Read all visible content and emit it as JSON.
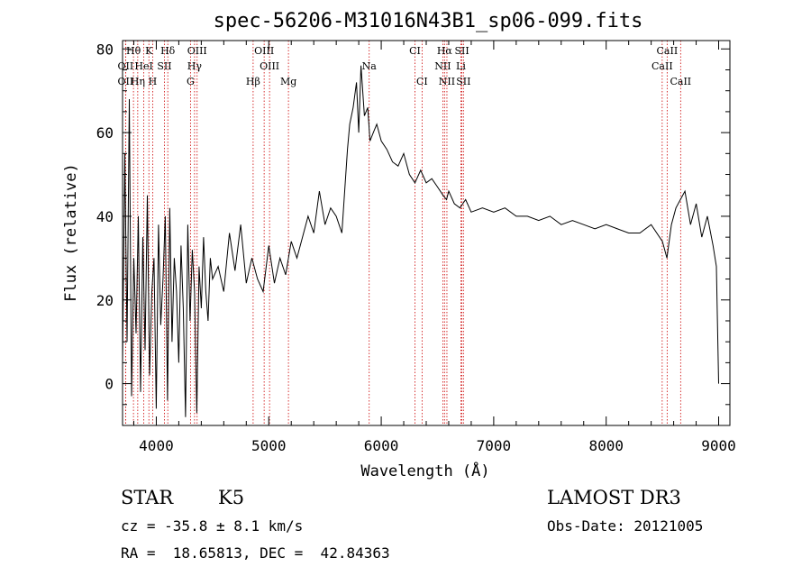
{
  "chart_data": {
    "type": "line",
    "title": "spec-56206-M31016N43B1_sp06-099.fits",
    "xlabel": "Wavelength (Å)",
    "ylabel": "Flux (relative)",
    "xlim": [
      3700,
      9100
    ],
    "ylim": [
      -10,
      82
    ],
    "xticks": [
      4000,
      5000,
      6000,
      7000,
      8000,
      9000
    ],
    "yticks": [
      0,
      20,
      40,
      60,
      80
    ],
    "series": [
      {
        "name": "spectrum",
        "x": [
          3700,
          3720,
          3740,
          3760,
          3780,
          3800,
          3820,
          3840,
          3860,
          3880,
          3900,
          3920,
          3940,
          3960,
          3980,
          4000,
          4020,
          4040,
          4060,
          4080,
          4100,
          4120,
          4140,
          4160,
          4180,
          4200,
          4220,
          4240,
          4260,
          4280,
          4300,
          4320,
          4340,
          4360,
          4380,
          4400,
          4420,
          4440,
          4460,
          4480,
          4500,
          4550,
          4600,
          4650,
          4700,
          4750,
          4800,
          4850,
          4900,
          4950,
          5000,
          5050,
          5100,
          5150,
          5200,
          5250,
          5300,
          5350,
          5400,
          5450,
          5500,
          5550,
          5600,
          5650,
          5700,
          5720,
          5750,
          5780,
          5800,
          5820,
          5850,
          5880,
          5900,
          5930,
          5960,
          6000,
          6050,
          6100,
          6150,
          6200,
          6250,
          6300,
          6350,
          6400,
          6450,
          6500,
          6550,
          6580,
          6600,
          6650,
          6700,
          6750,
          6800,
          6900,
          7000,
          7100,
          7200,
          7300,
          7400,
          7500,
          7600,
          7700,
          7800,
          7900,
          8000,
          8100,
          8200,
          8300,
          8400,
          8500,
          8540,
          8580,
          8620,
          8660,
          8700,
          8750,
          8800,
          8850,
          8900,
          8950,
          8980,
          9000
        ],
        "values": [
          5,
          55,
          10,
          68,
          -3,
          30,
          12,
          40,
          -2,
          35,
          8,
          45,
          2,
          22,
          30,
          -6,
          38,
          14,
          25,
          40,
          -4,
          42,
          10,
          30,
          22,
          5,
          33,
          18,
          -8,
          38,
          15,
          32,
          22,
          -7,
          28,
          18,
          35,
          22,
          15,
          30,
          25,
          28,
          22,
          36,
          27,
          38,
          24,
          30,
          25,
          22,
          33,
          24,
          30,
          26,
          34,
          30,
          35,
          40,
          36,
          46,
          38,
          42,
          40,
          36,
          56,
          62,
          66,
          72,
          60,
          76,
          64,
          66,
          58,
          60,
          62,
          58,
          56,
          53,
          52,
          55,
          50,
          48,
          51,
          48,
          49,
          47,
          45,
          44,
          46,
          43,
          42,
          44,
          41,
          42,
          41,
          42,
          40,
          40,
          39,
          40,
          38,
          39,
          38,
          37,
          38,
          37,
          36,
          36,
          38,
          34,
          30,
          38,
          42,
          44,
          46,
          38,
          43,
          35,
          40,
          33,
          28,
          0
        ]
      }
    ],
    "spectral_lines": [
      {
        "name": "Hθ",
        "x": 3797,
        "row": 0
      },
      {
        "name": "K",
        "x": 3934,
        "row": 0
      },
      {
        "name": "Hδ",
        "x": 4102,
        "row": 0
      },
      {
        "name": "OIII",
        "x": 4363,
        "row": 0
      },
      {
        "name": "OIII",
        "x": 4959,
        "row": 0
      },
      {
        "name": "CI",
        "x": 6300,
        "row": 0
      },
      {
        "name": "Hα",
        "x": 6563,
        "row": 0
      },
      {
        "name": "SII",
        "x": 6717,
        "row": 0
      },
      {
        "name": "CaII",
        "x": 8542,
        "row": 0
      },
      {
        "name": "OII",
        "x": 3727,
        "row": 1
      },
      {
        "name": "HeI",
        "x": 3889,
        "row": 1
      },
      {
        "name": "SII",
        "x": 4072,
        "row": 1
      },
      {
        "name": "Hγ",
        "x": 4340,
        "row": 1
      },
      {
        "name": "OIII",
        "x": 5007,
        "row": 1
      },
      {
        "name": "Na",
        "x": 5893,
        "row": 1
      },
      {
        "name": "NII",
        "x": 6548,
        "row": 1
      },
      {
        "name": "Li",
        "x": 6708,
        "row": 1
      },
      {
        "name": "CaII",
        "x": 8498,
        "row": 1
      },
      {
        "name": "OII",
        "x": 3727,
        "row": 2
      },
      {
        "name": "Hη",
        "x": 3835,
        "row": 2
      },
      {
        "name": "H",
        "x": 3968,
        "row": 2
      },
      {
        "name": "G",
        "x": 4304,
        "row": 2
      },
      {
        "name": "Hβ",
        "x": 4861,
        "row": 2
      },
      {
        "name": "Mg",
        "x": 5175,
        "row": 2
      },
      {
        "name": "CI",
        "x": 6363,
        "row": 2
      },
      {
        "name": "NII",
        "x": 6584,
        "row": 2
      },
      {
        "name": "SII",
        "x": 6731,
        "row": 2
      },
      {
        "name": "CaII",
        "x": 8662,
        "row": 2
      }
    ]
  },
  "info": {
    "class_label": "STAR",
    "subclass": "K5",
    "survey": "LAMOST DR3",
    "cz": "cz = -35.8 ± 8.1 km/s",
    "obs_date": "Obs-Date: 20121005",
    "coords": "RA =  18.65813, DEC =  42.84363"
  }
}
